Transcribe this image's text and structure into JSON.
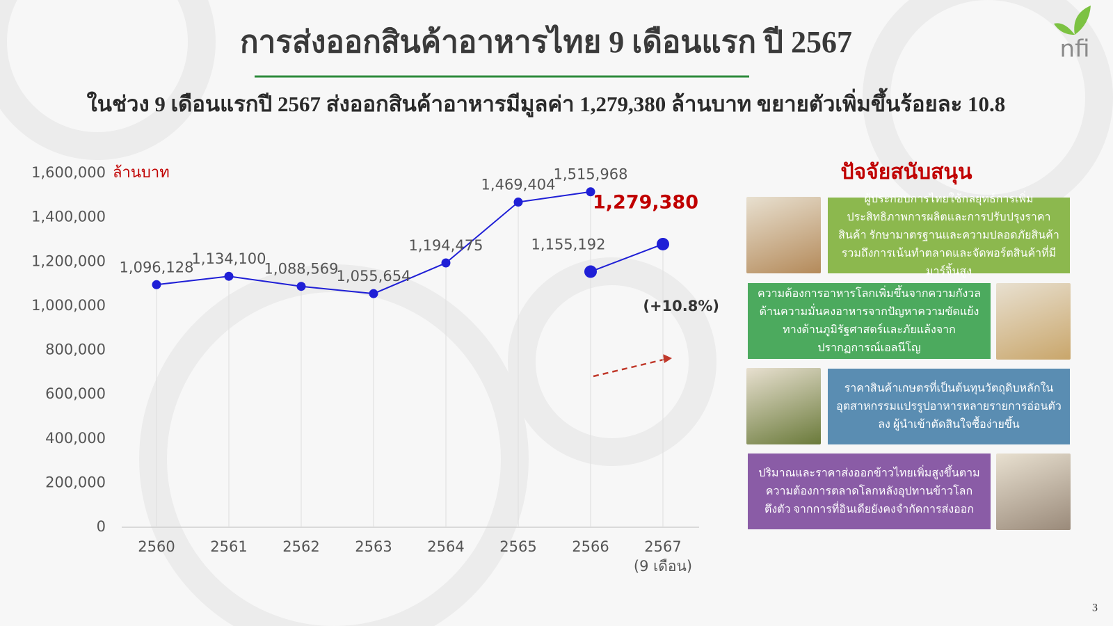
{
  "title": "การส่งออกสินค้าอาหารไทย 9 เดือนแรก ปี 2567",
  "subtitle": "ในช่วง 9 เดือนแรกปี 2567 ส่งออกสินค้าอาหารมีมูลค่า  1,279,380  ล้านบาท ขยายตัวเพิ่มขึ้นร้อยละ 10.8",
  "logo": "nfi",
  "page_number": "3",
  "chart_data": {
    "type": "line",
    "y_unit": "ล้านบาท",
    "categories": [
      "2560",
      "2561",
      "2562",
      "2563",
      "2564",
      "2565",
      "2566",
      "2567"
    ],
    "category_note": "(9 เดือน)",
    "series": [
      {
        "color": "#1f1fd6",
        "values": [
          1096128,
          1134100,
          1088569,
          1055654,
          1194475,
          1469404,
          1515968,
          null
        ],
        "value_labels": [
          "1,096,128",
          "1,134,100",
          "1,088,569",
          "1,055,654",
          "1,194,475",
          "1,469,404",
          "1,515,968",
          null
        ]
      },
      {
        "color": "#1f1fd6",
        "values": [
          null,
          null,
          null,
          null,
          null,
          null,
          1155192,
          1279380
        ],
        "value_labels": [
          null,
          null,
          null,
          null,
          null,
          null,
          "1,155,192",
          "1,279,380"
        ]
      }
    ],
    "ylim": [
      0,
      1600000
    ],
    "yticks": [
      0,
      {
        "value": 200000,
        "label": "200,000"
      },
      {
        "value": 400000,
        "label": "400,000"
      },
      {
        "value": 600000,
        "label": "600,000"
      },
      {
        "value": 800000,
        "label": "800,000"
      },
      {
        "value": 1000000,
        "label": "1,000,000"
      },
      {
        "value": 1200000,
        "label": "1,200,000"
      },
      {
        "value": 1400000,
        "label": "1,400,000"
      },
      {
        "value": 1600000,
        "label": "1,600,000"
      }
    ],
    "drop_lines": true,
    "annotation": "(+10.8%)"
  },
  "factors": {
    "title": "ปัจจัยสนับสนุน",
    "items": [
      {
        "text": "ผู้ประกอบการไทยใช้กลยุทธ์การเพิ่มประสิทธิภาพการผลิตและการปรับปรุงราคาสินค้า รักษามาตรฐานและความปลอดภัยสินค้า รวมถึงการเน้นทำตลาดและจัดพอร์ตสินค้าที่มีมาร์จิ้นสูง",
        "color": "#8cb84e"
      },
      {
        "text": "ความต้องการอาหารโลกเพิ่มขึ้นจากความกังวลด้านความมั่นคงอาหารจากปัญหาความขัดแย้งทางด้านภูมิรัฐศาสตร์และภัยแล้งจากปรากฏการณ์เอลนีโญ",
        "color": "#4caa5e"
      },
      {
        "text": "ราคาสินค้าเกษตรที่เป็นต้นทุนวัตถุดิบหลักในอุตสาหกรรมแปรรูปอาหารหลายรายการอ่อนตัวลง ผู้นำเข้าตัดสินใจซื้อง่ายขึ้น",
        "color": "#5a8db2"
      },
      {
        "text": "ปริมาณและราคาส่งออกข้าวไทยเพิ่มสูงขึ้นตามความต้องการตลาดโลกหลังอุปทานข้าวโลกตึงตัว จากการที่อินเดียยังคงจำกัดการส่งออก",
        "color": "#8a5ca6"
      }
    ]
  }
}
